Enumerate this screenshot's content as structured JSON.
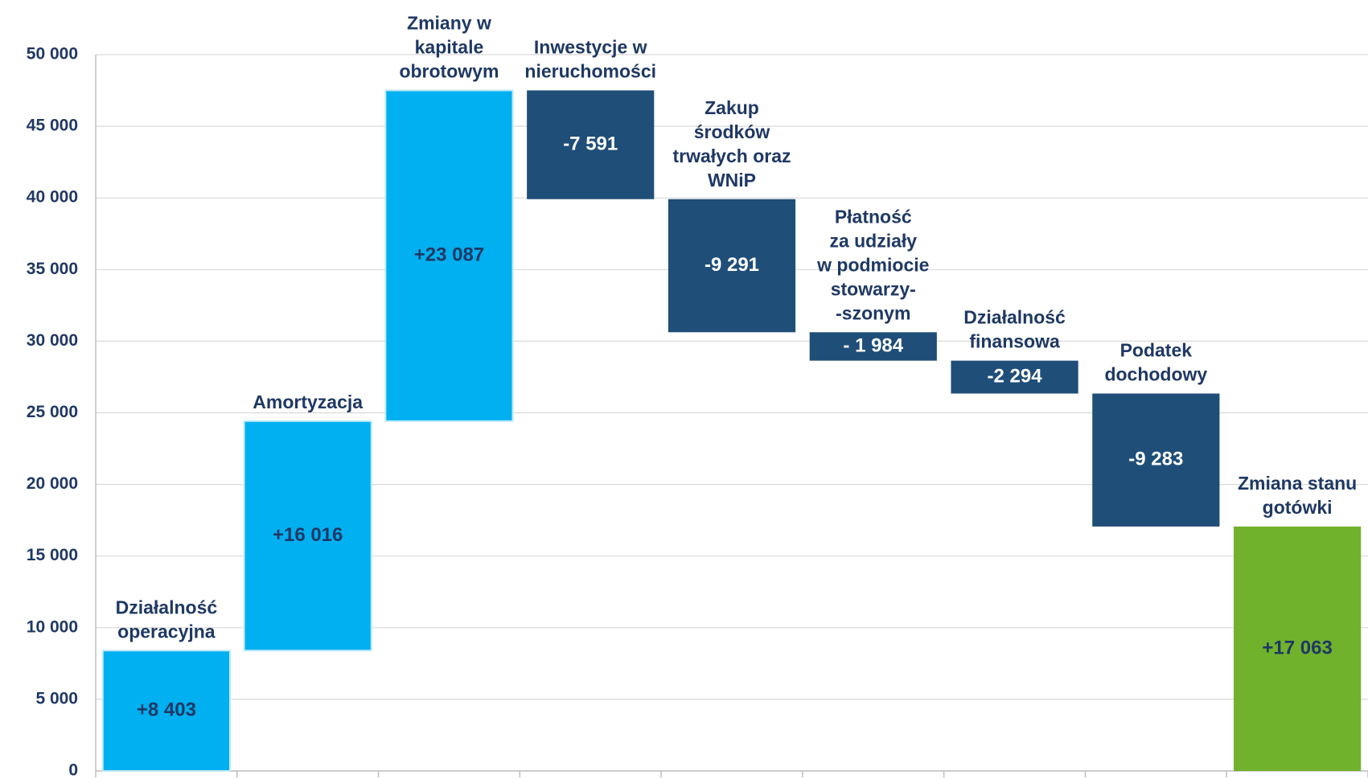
{
  "chart_data": {
    "type": "waterfall",
    "categories": [
      [
        "Działalność",
        "operacyjna"
      ],
      [
        "Amortyzacja"
      ],
      [
        "Zmiany w",
        "kapitale",
        "obrotowym"
      ],
      [
        "Inwestycje w",
        "nieruchomości"
      ],
      [
        "Zakup",
        "środków",
        "trwałych oraz",
        "WNiP"
      ],
      [
        "Płatność",
        "za udziały",
        "w podmiocie",
        "stowarzy-",
        "-szonym"
      ],
      [
        "Działalność",
        "finansowa"
      ],
      [
        "Podatek",
        "dochodowy"
      ],
      [
        "Zmiana stanu",
        "gotówki"
      ]
    ],
    "values": [
      8403,
      16016,
      23087,
      -7591,
      -9291,
      -1984,
      -2294,
      -9283,
      17063
    ],
    "value_labels": [
      "+8 403",
      "+16 016",
      "+23 087",
      "-7 591",
      "-9 291",
      "- 1 984",
      "-2 294",
      "-9 283",
      "+17 063"
    ],
    "measure": [
      "relative",
      "relative",
      "relative",
      "relative",
      "relative",
      "relative",
      "relative",
      "relative",
      "total"
    ],
    "colors": [
      "#00b0f0",
      "#00b0f0",
      "#00b0f0",
      "#1f4e79",
      "#1f4e79",
      "#1f4e79",
      "#1f4e79",
      "#1f4e79",
      "#70b22c"
    ],
    "ylim": [
      0,
      50000
    ],
    "yticks": [
      {
        "value": 0,
        "label": "0"
      },
      {
        "value": 5000,
        "label": "5 000"
      },
      {
        "value": 10000,
        "label": "10 000"
      },
      {
        "value": 15000,
        "label": "15 000"
      },
      {
        "value": 20000,
        "label": "20 000"
      },
      {
        "value": 25000,
        "label": "25 000"
      },
      {
        "value": 30000,
        "label": "30 000"
      },
      {
        "value": 35000,
        "label": "35 000"
      },
      {
        "value": 40000,
        "label": "40 000"
      },
      {
        "value": 45000,
        "label": "45 000"
      },
      {
        "value": 50000,
        "label": "50 000"
      }
    ],
    "grid": true
  }
}
